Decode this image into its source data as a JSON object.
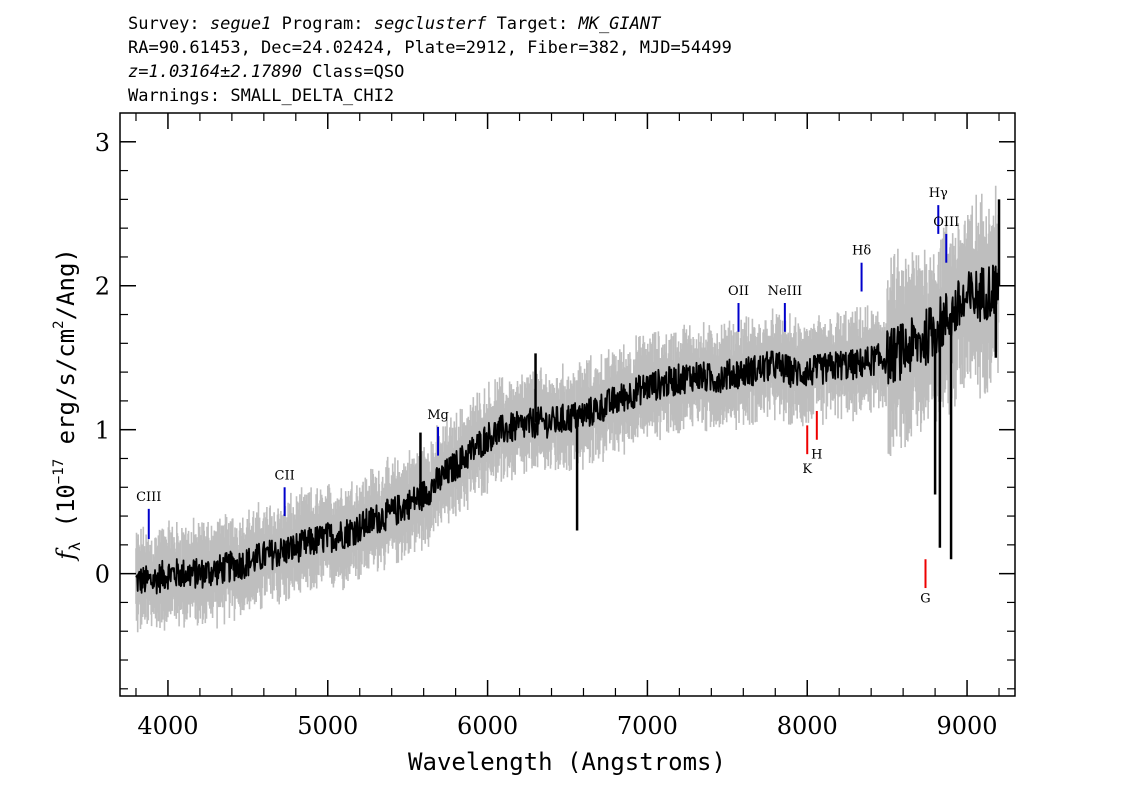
{
  "header": {
    "survey_label": "Survey:",
    "survey": "segue1",
    "program_label": "Program:",
    "program": "segclusterf",
    "target_label": "Target:",
    "target": "MK_GIANT",
    "line2": "RA=90.61453, Dec=24.02424, Plate=2912, Fiber=382, MJD=54499",
    "redshift": "z=1.03164±2.17890",
    "class_text": "Class=QSO",
    "warnings": "Warnings: SMALL_DELTA_CHI2"
  },
  "colors": {
    "flux": "#000000",
    "error_band": "#bebebe",
    "emission_line": "#0000cc",
    "absorption_line": "#ee0000"
  },
  "chart_data": {
    "type": "line",
    "xlabel": "Wavelength (Angstroms)",
    "ylabel_prefix": "f",
    "ylabel_sub": "λ",
    "ylabel_open": "(10",
    "ylabel_exp": "−17",
    "ylabel_mid": "erg/s/cm",
    "ylabel_exp2": "2",
    "ylabel_close": "/Ang)",
    "xlim": [
      3700,
      9300
    ],
    "ylim": [
      -0.85,
      3.2
    ],
    "x_ticks": [
      4000,
      5000,
      6000,
      7000,
      8000,
      9000
    ],
    "y_ticks": [
      0,
      1,
      2,
      3
    ],
    "series": [
      {
        "role": "flux",
        "x": [
          3800,
          3900,
          4000,
          4100,
          4200,
          4300,
          4400,
          4500,
          4600,
          4700,
          4800,
          4900,
          5000,
          5100,
          5200,
          5300,
          5400,
          5500,
          5600,
          5700,
          5800,
          5900,
          6000,
          6100,
          6200,
          6300,
          6400,
          6500,
          6600,
          6700,
          6800,
          6900,
          7000,
          7100,
          7200,
          7300,
          7400,
          7500,
          7600,
          7700,
          7800,
          7900,
          8000,
          8100,
          8200,
          8300,
          8400,
          8500,
          8600,
          8700,
          8800,
          8900,
          9000,
          9100,
          9200
        ],
        "y": [
          -0.05,
          -0.05,
          0.0,
          0.0,
          0.0,
          0.02,
          0.05,
          0.08,
          0.12,
          0.15,
          0.18,
          0.22,
          0.25,
          0.28,
          0.32,
          0.38,
          0.42,
          0.48,
          0.55,
          0.65,
          0.75,
          0.85,
          0.95,
          1.0,
          1.02,
          1.05,
          1.05,
          1.08,
          1.1,
          1.15,
          1.2,
          1.25,
          1.3,
          1.32,
          1.35,
          1.38,
          1.35,
          1.38,
          1.4,
          1.42,
          1.45,
          1.4,
          1.4,
          1.42,
          1.45,
          1.45,
          1.48,
          1.5,
          1.55,
          1.6,
          1.7,
          1.8,
          1.9,
          1.95,
          2.0
        ]
      }
    ],
    "spikes": [
      {
        "x": 5580,
        "y": 0.98
      },
      {
        "x": 6300,
        "y": 1.53
      },
      {
        "x": 6560,
        "y": 0.3
      },
      {
        "x": 8800,
        "y": 0.55
      },
      {
        "x": 8830,
        "y": 0.18
      },
      {
        "x": 8900,
        "y": 0.1
      },
      {
        "x": 9200,
        "y": 2.6
      },
      {
        "x": 9180,
        "y": 1.5
      }
    ],
    "emission_lines": [
      {
        "label": "CIII",
        "x": 3880,
        "y_low": 0.24,
        "y_high": 0.45
      },
      {
        "label": "CII",
        "x": 4730,
        "y_low": 0.4,
        "y_high": 0.6
      },
      {
        "label": "Mg",
        "x": 5690,
        "y_low": 0.82,
        "y_high": 1.02
      },
      {
        "label": "OII",
        "x": 7570,
        "y_low": 1.68,
        "y_high": 1.88
      },
      {
        "label": "NeIII",
        "x": 7860,
        "y_low": 1.68,
        "y_high": 1.88
      },
      {
        "label": "Hδ",
        "x": 8340,
        "y_low": 1.96,
        "y_high": 2.16
      },
      {
        "label": "Hγ",
        "x": 8820,
        "y_low": 2.36,
        "y_high": 2.56
      },
      {
        "label": "OIII",
        "x": 8870,
        "y_low": 2.16,
        "y_high": 2.36
      }
    ],
    "absorption_lines": [
      {
        "label": "K",
        "x": 8000,
        "y_low": 0.83,
        "y_high": 1.03,
        "label_y": 0.7
      },
      {
        "label": "H",
        "x": 8060,
        "y_low": 0.93,
        "y_high": 1.13,
        "label_y": 0.8
      },
      {
        "label": "G",
        "x": 8740,
        "y_low": -0.1,
        "y_high": 0.1,
        "label_y": -0.2
      }
    ]
  }
}
